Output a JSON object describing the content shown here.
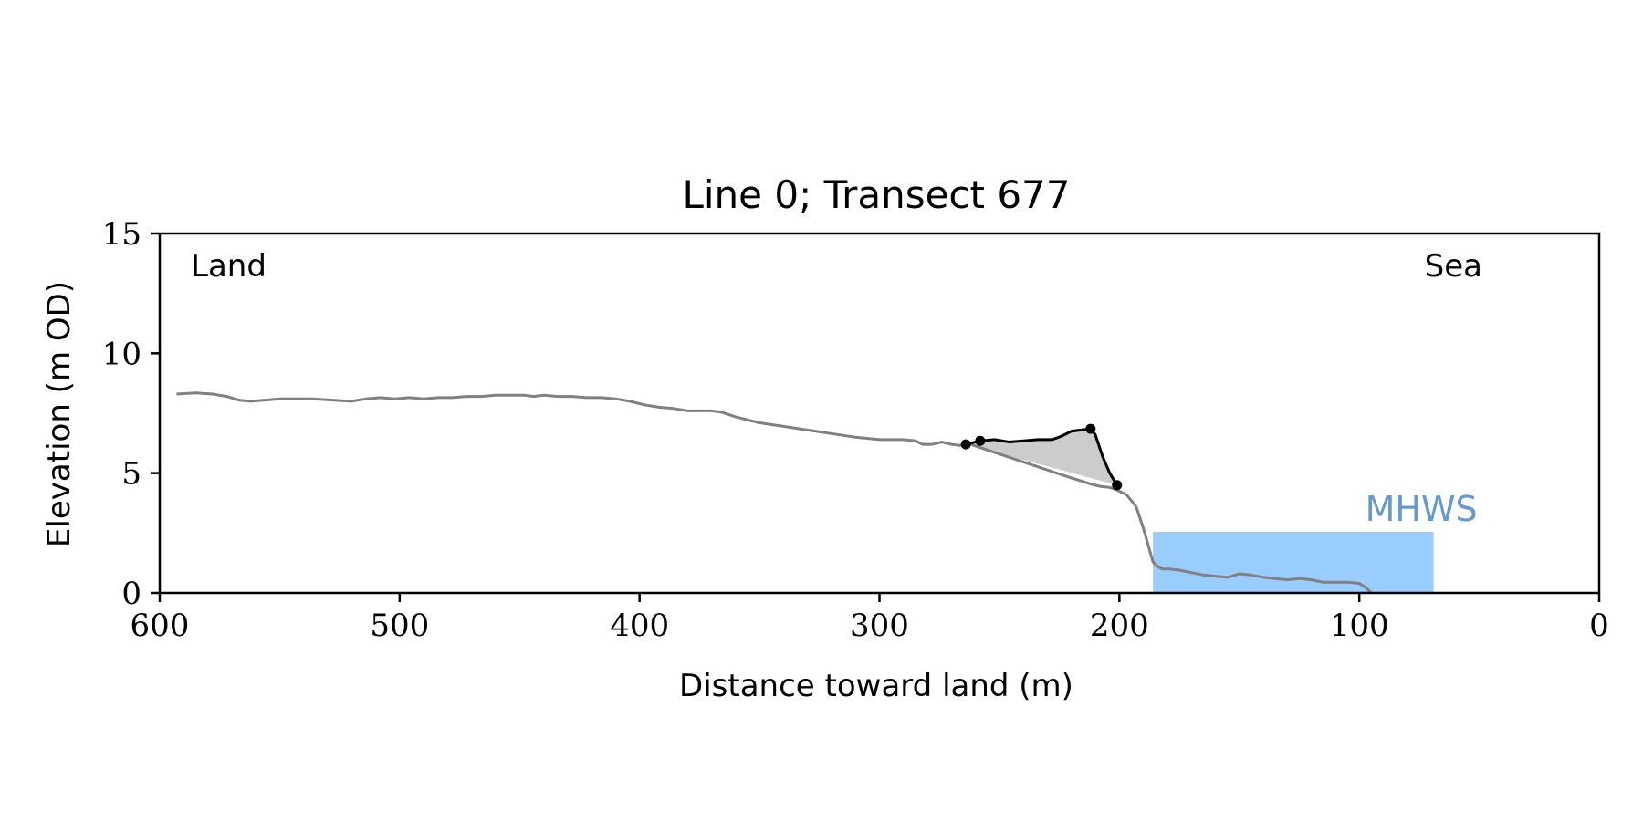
{
  "chart_data": {
    "type": "line",
    "title": "Line 0; Transect 677",
    "xlabel": "Distance toward land (m)",
    "ylabel": "Elevation (m OD)",
    "xlim": [
      600,
      0
    ],
    "ylim": [
      0,
      15
    ],
    "x_ticks": [
      600,
      500,
      400,
      300,
      200,
      100,
      0
    ],
    "y_ticks": [
      0,
      5,
      10,
      15
    ],
    "grid": false,
    "annotations": {
      "land": "Land",
      "sea": "Sea",
      "mhws": "MHWS"
    },
    "colors": {
      "profile": "#808080",
      "dune_segment": "#000000",
      "dune_fill": "#cccccc",
      "mhws_fill": "#99ccff",
      "mhws_text": "#6699cc"
    },
    "mhws": {
      "x_start": 186,
      "x_end": 69,
      "elevation": 2.55
    },
    "series": [
      {
        "role": "profile",
        "x": [
          593,
          585,
          578,
          572,
          567,
          562,
          556,
          550,
          544,
          536,
          528,
          520,
          514,
          508,
          502,
          496,
          490,
          484,
          478,
          472,
          466,
          460,
          454,
          448,
          444,
          440,
          434,
          428,
          422,
          416,
          410,
          404,
          398,
          392,
          386,
          380,
          376,
          370,
          366,
          360,
          350,
          340,
          330,
          320,
          310,
          300,
          290,
          285,
          282,
          278,
          274,
          270,
          266,
          262,
          256,
          250,
          244,
          238,
          232,
          226,
          220,
          215,
          212,
          208,
          204,
          201,
          197,
          193,
          190,
          188,
          186,
          184,
          182,
          179,
          175,
          170,
          165,
          160,
          155,
          150,
          145,
          140,
          135,
          130,
          125,
          120,
          115,
          110,
          105,
          100,
          97,
          95
        ],
        "y": [
          8.3,
          8.35,
          8.3,
          8.2,
          8.05,
          8.0,
          8.05,
          8.1,
          8.1,
          8.1,
          8.05,
          8.0,
          8.1,
          8.15,
          8.1,
          8.15,
          8.1,
          8.15,
          8.15,
          8.2,
          8.2,
          8.25,
          8.25,
          8.25,
          8.2,
          8.25,
          8.2,
          8.2,
          8.15,
          8.15,
          8.1,
          8.0,
          7.85,
          7.75,
          7.7,
          7.6,
          7.6,
          7.6,
          7.55,
          7.35,
          7.1,
          6.95,
          6.8,
          6.65,
          6.5,
          6.4,
          6.4,
          6.35,
          6.2,
          6.2,
          6.3,
          6.2,
          6.15,
          6.2,
          6.0,
          5.8,
          5.6,
          5.4,
          5.2,
          5.0,
          4.8,
          4.65,
          4.55,
          4.45,
          4.4,
          4.3,
          4.1,
          3.6,
          2.7,
          2.0,
          1.3,
          1.1,
          1.0,
          1.0,
          0.95,
          0.85,
          0.75,
          0.7,
          0.65,
          0.8,
          0.75,
          0.65,
          0.6,
          0.55,
          0.6,
          0.55,
          0.45,
          0.45,
          0.45,
          0.4,
          0.2,
          0.0
        ]
      },
      {
        "role": "dune",
        "x": [
          264,
          258,
          252,
          246,
          240,
          234,
          228,
          224,
          220,
          216,
          212,
          210,
          207,
          204,
          201
        ],
        "y": [
          6.2,
          6.35,
          6.4,
          6.3,
          6.35,
          6.4,
          6.4,
          6.55,
          6.75,
          6.8,
          6.85,
          6.6,
          5.7,
          5.0,
          4.5
        ]
      }
    ],
    "markers": {
      "x": [
        264,
        258,
        212,
        201
      ],
      "y": [
        6.2,
        6.35,
        6.85,
        4.5
      ]
    }
  }
}
